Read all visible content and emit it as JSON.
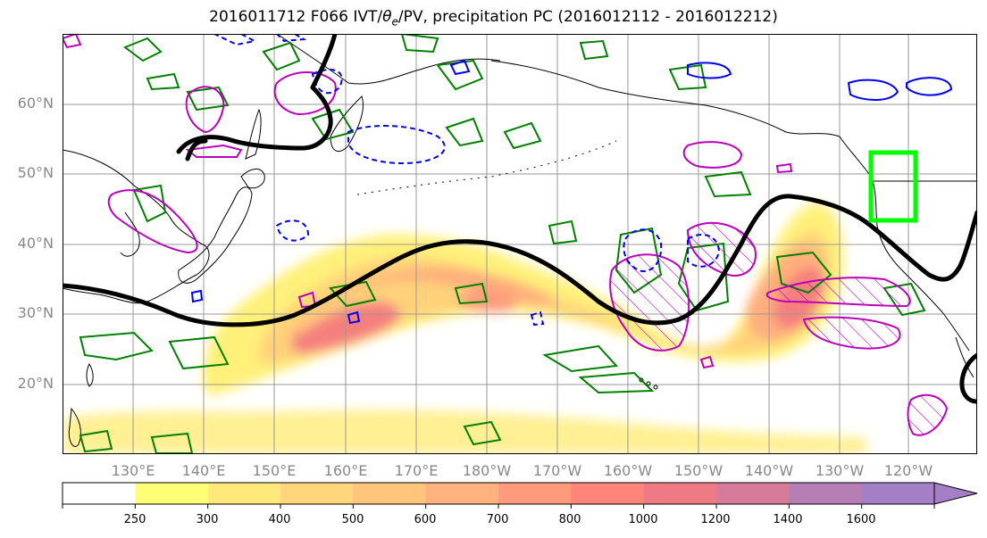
{
  "title": {
    "main": "2016011712 F066 IVT/",
    "symbol": "θ",
    "sub": "e",
    "rest": "/PV, precipitation PC (2016012112 - 2016012212)"
  },
  "lat_labels": [
    "60°N",
    "50°N",
    "40°N",
    "30°N",
    "20°N"
  ],
  "lon_labels": [
    "130°E",
    "140°E",
    "150°E",
    "160°E",
    "170°E",
    "180°W",
    "170°W",
    "160°W",
    "150°W",
    "140°W",
    "130°W",
    "120°W"
  ],
  "colorbar": {
    "labels": [
      "250",
      "300",
      "400",
      "500",
      "600",
      "700",
      "800",
      "1000",
      "1200",
      "1400",
      "1600"
    ],
    "colors": [
      "#ffffff",
      "#ffff77",
      "#ffe97a",
      "#ffd67b",
      "#ffc57c",
      "#ffb27d",
      "#ff9a7c",
      "#ff857a",
      "#ee7a86",
      "#d67b9a",
      "#b67eb4",
      "#a57fc6"
    ]
  },
  "chart_data": {
    "type": "map",
    "lat_range": [
      10,
      70
    ],
    "lon_range": [
      120,
      250
    ],
    "ivt_levels": [
      250,
      300,
      400,
      500,
      600,
      700,
      800,
      1000,
      1200,
      1400,
      1600
    ]
  },
  "colors": {
    "grid": "#999999",
    "coast": "#000000",
    "pv_line": "#000000",
    "target_box": "#00ff00",
    "green_contour": "#008000",
    "magenta_contour": "#bb00bb",
    "blue_contour": "#0000ee"
  }
}
